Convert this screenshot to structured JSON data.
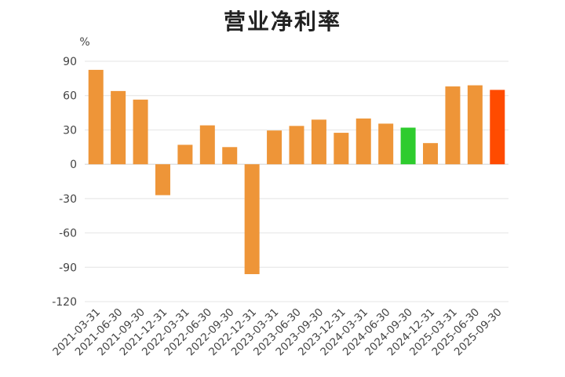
{
  "chart_data": {
    "type": "bar",
    "title": "营业净利率",
    "ylabel": "%",
    "xlabel": "",
    "ylim": [
      -120,
      90
    ],
    "yticks": [
      90,
      60,
      30,
      0,
      -30,
      -60,
      -90,
      -120
    ],
    "grid": true,
    "categories": [
      "2021-03-31",
      "2021-06-30",
      "2021-09-30",
      "2021-12-31",
      "2022-03-31",
      "2022-06-30",
      "2022-09-30",
      "2022-12-31",
      "2023-03-31",
      "2023-06-30",
      "2023-09-30",
      "2023-12-31",
      "2024-03-31",
      "2024-06-30",
      "2024-09-30",
      "2024-12-31",
      "2025-03-31",
      "2025-06-30",
      "2025-09-30"
    ],
    "values": [
      82.5,
      64,
      56.5,
      -27,
      17,
      34,
      15,
      -96,
      29.5,
      33.5,
      39,
      27.5,
      40,
      35.5,
      32,
      18.5,
      68,
      69,
      65
    ],
    "colors": {
      "default": "#EE9538",
      "highlight_2024_09_30": "#2ECC2E",
      "highlight_2025_09_30": "#FF4B00"
    }
  }
}
